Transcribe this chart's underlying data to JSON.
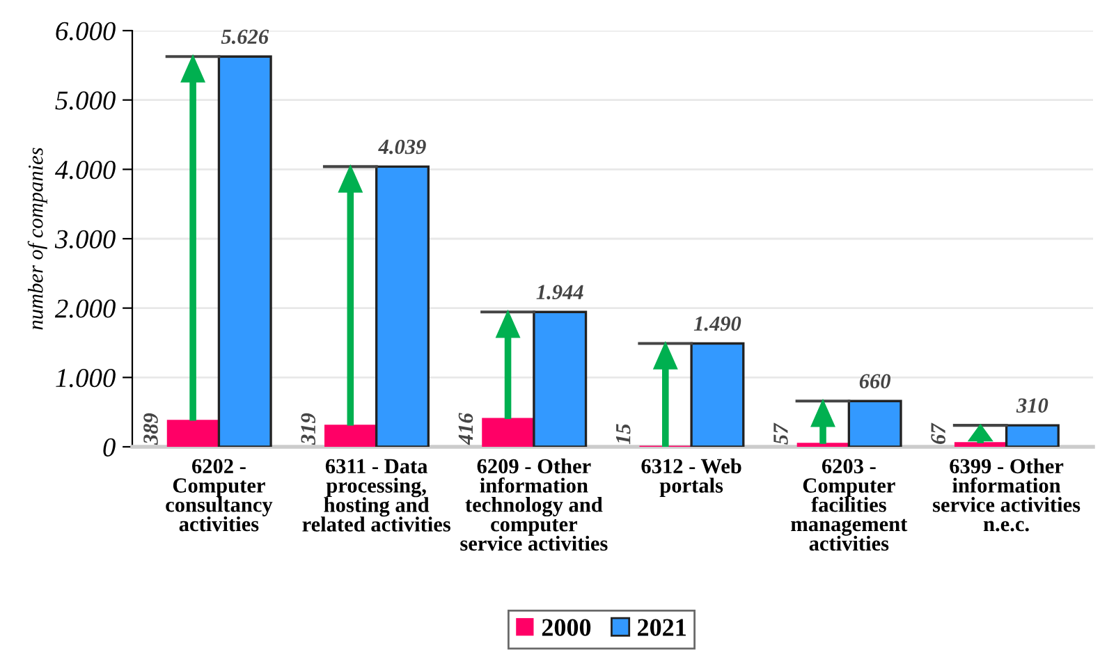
{
  "chart_data": {
    "type": "bar",
    "ylabel": "number of companies",
    "categories": [
      "6202 -\nComputer\nconsultancy\nactivities",
      "6311 - Data\nprocessing,\nhosting and\nrelated activities",
      "6209 - Other\ninformation\ntechnology and\ncomputer\nservice activities",
      "6312 - Web\nportals",
      "6203 -\nComputer\nfacilities\nmanagement\nactivities",
      "6399 - Other\ninformation\nservice activities\nn.e.c."
    ],
    "series": [
      {
        "name": "2000",
        "color": "#ff0066",
        "values": [
          389,
          319,
          416,
          15,
          57,
          67
        ],
        "value_labels": [
          "389",
          "319",
          "416",
          "15",
          "57",
          "67"
        ]
      },
      {
        "name": "2021",
        "color": "#3399ff",
        "values": [
          5626,
          4039,
          1944,
          1490,
          660,
          310
        ],
        "value_labels": [
          "5.626",
          "4.039",
          "1.944",
          "1.490",
          "660",
          "310"
        ]
      }
    ],
    "ylim": [
      0,
      6000
    ],
    "yticks": [
      0,
      {
        "value": 1000,
        "label": "1.000"
      },
      {
        "value": 2000,
        "label": "2.000"
      },
      {
        "value": 3000,
        "label": "3.000"
      },
      {
        "value": 4000,
        "label": "4.000"
      },
      {
        "value": 5000,
        "label": "5.000"
      },
      {
        "value": 6000,
        "label": "6.000"
      }
    ],
    "grid": "y",
    "legend": "bottom"
  }
}
